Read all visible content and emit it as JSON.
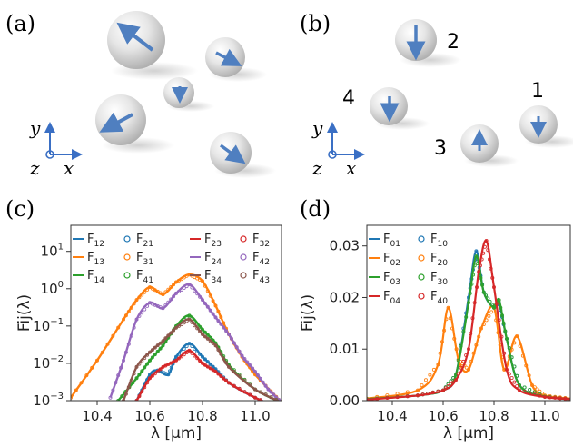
{
  "panels": {
    "a": {
      "label": "(a)",
      "axes": {
        "x": "x",
        "y": "y",
        "z": "z"
      }
    },
    "b": {
      "label": "(b)",
      "axes": {
        "x": "x",
        "y": "y",
        "z": "z"
      },
      "particle_numbers": [
        "1",
        "2",
        "3",
        "4"
      ]
    },
    "c": {
      "label": "(c)"
    },
    "d": {
      "label": "(d)"
    }
  },
  "colors": {
    "blue": "#1f77b4",
    "orange": "#ff7f0e",
    "green": "#2ca02c",
    "red": "#d62728",
    "purple": "#9467bd",
    "brown": "#8c564b",
    "arrow": "#4f7fc0",
    "axisblue": "#3a6fc4"
  },
  "chart_data": [
    {
      "type": "line",
      "panel": "c",
      "xlabel": "λ [μm]",
      "ylabel": "Fij(λ)",
      "xlim": [
        10.3,
        11.1
      ],
      "ylim": [
        0.001,
        50
      ],
      "yscale": "log",
      "xticks": [
        "10.4",
        "10.6",
        "10.8",
        "11.0"
      ],
      "yticks": [
        "10^-3",
        "10^-2",
        "10^-1",
        "10^0",
        "10^1"
      ],
      "legend": [
        "F12",
        "F21",
        "F23",
        "F32",
        "F13",
        "F31",
        "F24",
        "F42",
        "F14",
        "F41",
        "F34",
        "F43"
      ],
      "series": [
        {
          "name": "F13 / F31",
          "x": [
            10.3,
            10.4,
            10.5,
            10.55,
            10.6,
            10.65,
            10.7,
            10.75,
            10.8,
            10.85,
            10.9,
            10.95,
            11.0,
            11.1
          ],
          "values": [
            0.0012,
            0.012,
            0.15,
            0.5,
            1.1,
            0.7,
            1.5,
            2.4,
            1.6,
            0.35,
            0.06,
            0.015,
            0.005,
            0.0009
          ]
        },
        {
          "name": "F24 / F42",
          "x": [
            10.45,
            10.5,
            10.55,
            10.6,
            10.65,
            10.7,
            10.75,
            10.8,
            10.85,
            10.9,
            10.95,
            11.0,
            11.05,
            11.1
          ],
          "values": [
            0.0012,
            0.012,
            0.15,
            0.42,
            0.3,
            0.75,
            1.3,
            0.5,
            0.17,
            0.06,
            0.016,
            0.006,
            0.002,
            0.0009
          ]
        },
        {
          "name": "F14 / F41",
          "x": [
            10.48,
            10.55,
            10.6,
            10.65,
            10.7,
            10.75,
            10.8,
            10.85,
            10.9,
            11.0,
            11.1
          ],
          "values": [
            0.001,
            0.004,
            0.012,
            0.03,
            0.1,
            0.19,
            0.08,
            0.035,
            0.009,
            0.002,
            0.0009
          ]
        },
        {
          "name": "F34 / F43",
          "x": [
            10.5,
            10.55,
            10.6,
            10.65,
            10.7,
            10.75,
            10.8,
            10.85,
            10.9,
            11.0,
            11.1
          ],
          "values": [
            0.001,
            0.008,
            0.02,
            0.04,
            0.09,
            0.15,
            0.06,
            0.03,
            0.008,
            0.002,
            0.0009
          ]
        },
        {
          "name": "F12 / F21",
          "x": [
            10.55,
            10.6,
            10.63,
            10.67,
            10.7,
            10.75,
            10.8,
            10.85,
            10.9,
            11.0,
            11.1
          ],
          "values": [
            0.001,
            0.005,
            0.0065,
            0.005,
            0.015,
            0.034,
            0.015,
            0.007,
            0.003,
            0.0012,
            0.0006
          ]
        },
        {
          "name": "F23 / F32",
          "x": [
            10.55,
            10.6,
            10.65,
            10.7,
            10.75,
            10.8,
            10.85,
            10.9,
            11.0,
            11.1
          ],
          "values": [
            0.001,
            0.004,
            0.008,
            0.012,
            0.022,
            0.01,
            0.006,
            0.003,
            0.0012,
            0.0006
          ]
        }
      ]
    },
    {
      "type": "line",
      "panel": "d",
      "xlabel": "λ [μm]",
      "ylabel": "Fij(λ)",
      "xlim": [
        10.3,
        11.1
      ],
      "ylim": [
        0,
        0.034
      ],
      "xticks": [
        "10.4",
        "10.6",
        "10.8",
        "11.0"
      ],
      "yticks": [
        "0.00",
        "0.01",
        "0.02",
        "0.03"
      ],
      "legend": [
        "F01",
        "F10",
        "F02",
        "F20",
        "F03",
        "F30",
        "F04",
        "F40"
      ],
      "series": [
        {
          "name": "F01 / F10",
          "x": [
            10.3,
            10.5,
            10.6,
            10.65,
            10.7,
            10.73,
            10.76,
            10.8,
            10.82,
            10.85,
            10.9,
            11.0,
            11.1
          ],
          "values": [
            0.0003,
            0.001,
            0.002,
            0.005,
            0.02,
            0.029,
            0.021,
            0.018,
            0.019,
            0.012,
            0.003,
            0.0008,
            0.0003
          ]
        },
        {
          "name": "F02 / F20",
          "x": [
            10.3,
            10.5,
            10.58,
            10.62,
            10.66,
            10.7,
            10.75,
            10.8,
            10.84,
            10.89,
            10.95,
            11.0,
            11.1
          ],
          "values": [
            0.0004,
            0.002,
            0.007,
            0.018,
            0.008,
            0.006,
            0.014,
            0.018,
            0.006,
            0.0125,
            0.003,
            0.001,
            0.0004
          ]
        },
        {
          "name": "F03 / F30",
          "x": [
            10.3,
            10.5,
            10.6,
            10.65,
            10.7,
            10.73,
            10.76,
            10.8,
            10.82,
            10.85,
            10.9,
            11.0,
            11.1
          ],
          "values": [
            0.0003,
            0.001,
            0.002,
            0.005,
            0.019,
            0.028,
            0.021,
            0.018,
            0.0195,
            0.012,
            0.003,
            0.0008,
            0.0003
          ]
        },
        {
          "name": "F04 / F40",
          "x": [
            10.3,
            10.5,
            10.6,
            10.65,
            10.7,
            10.74,
            10.77,
            10.8,
            10.85,
            10.9,
            11.0,
            11.1
          ],
          "values": [
            0.0002,
            0.001,
            0.002,
            0.004,
            0.01,
            0.025,
            0.031,
            0.022,
            0.006,
            0.002,
            0.0007,
            0.0003
          ]
        }
      ]
    }
  ]
}
